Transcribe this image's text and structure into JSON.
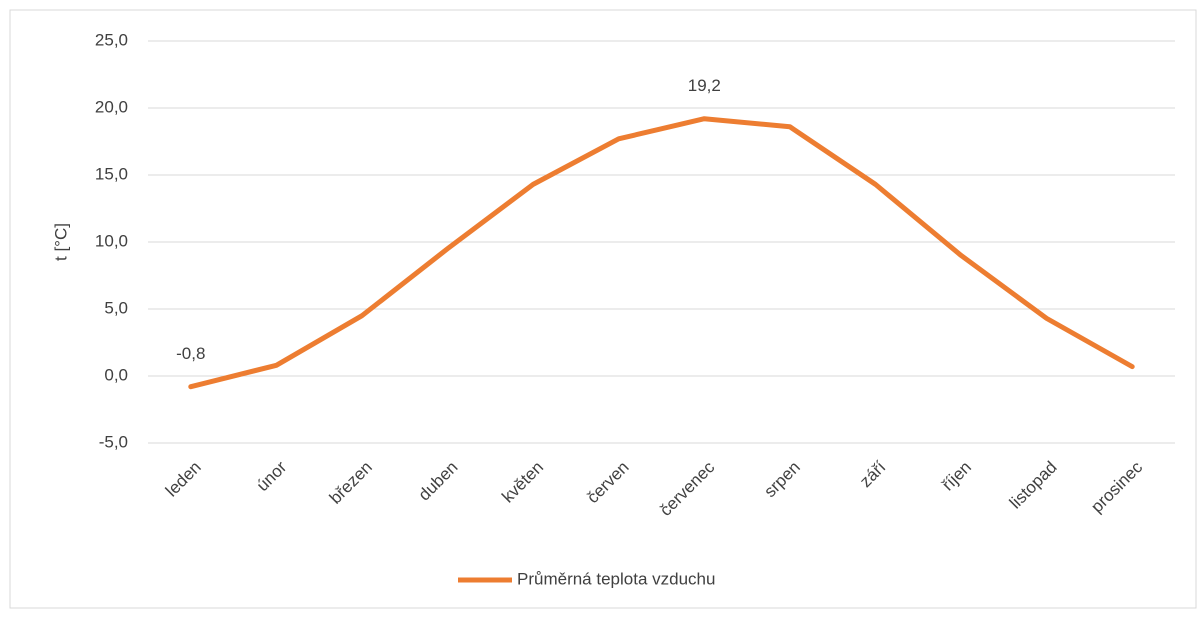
{
  "chart_data": {
    "type": "line",
    "y_label": "t [°C]",
    "categories": [
      "leden",
      "únor",
      "březen",
      "duben",
      "květen",
      "červen",
      "červenec",
      "srpen",
      "září",
      "říjen",
      "listopad",
      "prosinec"
    ],
    "series": [
      {
        "name": "Průměrná teplota vzduchu",
        "color": "#ed7d31",
        "values": [
          -0.8,
          0.8,
          4.5,
          9.5,
          14.3,
          17.7,
          19.2,
          18.6,
          14.3,
          9.0,
          4.3,
          0.7
        ],
        "value_labels": [
          "-0,8",
          null,
          null,
          null,
          null,
          null,
          "19,2",
          null,
          null,
          null,
          null,
          null
        ]
      }
    ],
    "ylim": [
      -5,
      25
    ],
    "yticks": [
      {
        "value": -5,
        "label": "-5,0"
      },
      {
        "value": 0,
        "label": "0,0"
      },
      {
        "value": 5,
        "label": "5,0"
      },
      {
        "value": 10,
        "label": "10,0"
      },
      {
        "value": 15,
        "label": "15,0"
      },
      {
        "value": 20,
        "label": "20,0"
      },
      {
        "value": 25,
        "label": "25,0"
      }
    ],
    "grid": true,
    "legend": "bottom"
  }
}
